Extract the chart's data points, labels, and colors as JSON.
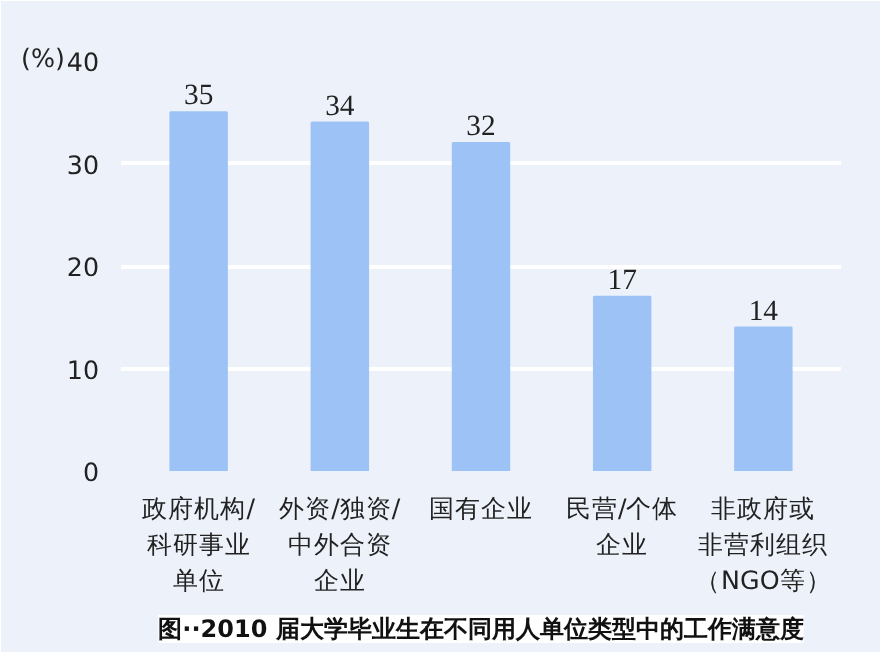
{
  "chart_data": {
    "type": "bar",
    "title": "图··2010 届大学毕业生在不同用人单位类型中的工作满意度",
    "ylabel": "(%)",
    "categories": [
      "政府机构/科研事业单位",
      "外资/独资/中外合资企业",
      "国有企业",
      "民营/个体企业",
      "非政府或非营利组织（NGO等）"
    ],
    "values": [
      35,
      34,
      32,
      17,
      14
    ],
    "color": "#9dc3f6",
    "ylim": [
      0,
      40
    ],
    "yticks": [
      0,
      10,
      20,
      30,
      40
    ],
    "grid": "y",
    "data_labels": true
  }
}
